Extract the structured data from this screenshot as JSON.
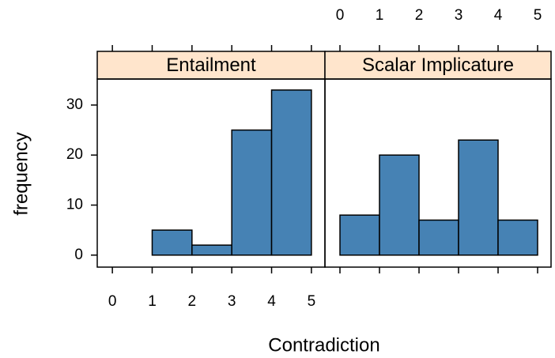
{
  "chart_data": [
    {
      "type": "histogram",
      "title": "Entailment",
      "xlabel": "Contradiction",
      "ylabel": "frequency",
      "bins": [
        0,
        1,
        2,
        3,
        4,
        5
      ],
      "values": [
        0,
        5,
        2,
        25,
        33
      ],
      "color": "#4682b4",
      "strip_color": "#ffe5cc",
      "xlim": [
        -0.38,
        5.34
      ],
      "ylim": [
        -2.4,
        35.2
      ],
      "xticks": [
        0,
        1,
        2,
        3,
        4,
        5
      ],
      "yticks": [
        0,
        10,
        20,
        30
      ]
    },
    {
      "type": "histogram",
      "title": "Scalar Implicature",
      "bins": [
        0,
        1,
        2,
        3,
        4,
        5
      ],
      "values": [
        8,
        20,
        7,
        23,
        7
      ],
      "color": "#4682b4",
      "strip_color": "#ffe5cc",
      "xlim": [
        -0.38,
        5.34
      ],
      "ylim": [
        -2.4,
        35.2
      ],
      "xticks": [
        0,
        1,
        2,
        3,
        4,
        5
      ]
    }
  ]
}
